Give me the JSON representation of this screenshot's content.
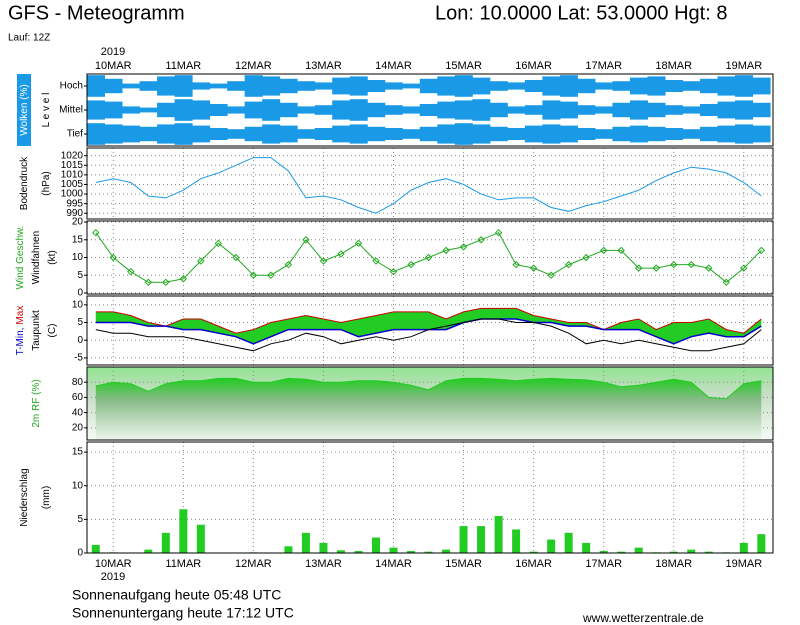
{
  "header": {
    "title": "GFS - Meteogramm",
    "location": "Lon: 10.0000 Lat: 53.0000 Hgt: 8",
    "run": "Lauf: 12Z"
  },
  "footer": {
    "sunrise": "Sonnenaufgang heute 05:48 UTC",
    "sunset": "Sonnenuntergang heute 17:12 UTC",
    "source": "www.wetterzentrale.de"
  },
  "time_axis": {
    "year": "2019",
    "xlim": [
      -9,
      226
    ],
    "xticks": [
      {
        "value": 0,
        "label": "10MAR"
      },
      {
        "value": 24,
        "label": "11MAR"
      },
      {
        "value": 48,
        "label": "12MAR"
      },
      {
        "value": 72,
        "label": "13MAR"
      },
      {
        "value": 96,
        "label": "14MAR"
      },
      {
        "value": 120,
        "label": "15MAR"
      },
      {
        "value": 144,
        "label": "16MAR"
      },
      {
        "value": 168,
        "label": "17MAR"
      },
      {
        "value": 192,
        "label": "18MAR"
      },
      {
        "value": 216,
        "label": "19MAR"
      }
    ],
    "x": [
      -6,
      0,
      6,
      12,
      18,
      24,
      30,
      36,
      42,
      48,
      54,
      60,
      66,
      72,
      78,
      84,
      90,
      96,
      102,
      108,
      114,
      120,
      126,
      132,
      138,
      144,
      150,
      156,
      162,
      168,
      174,
      180,
      186,
      192,
      198,
      204,
      210,
      216,
      222
    ]
  },
  "chart_data": [
    {
      "type": "cloud_levels",
      "ylabel": [
        [
          {
            "text": "Wolken (%)",
            "color": "#ffffff"
          }
        ],
        [
          {
            "text": "L e v e l",
            "color": "#000000"
          }
        ]
      ],
      "ylabel_bg": "#1a9ae6",
      "color": "#1a9ae6",
      "series": [
        {
          "name": "Hoch",
          "values": [
            90,
            60,
            20,
            40,
            80,
            90,
            30,
            20,
            40,
            90,
            80,
            60,
            40,
            30,
            70,
            80,
            50,
            30,
            20,
            60,
            80,
            90,
            70,
            40,
            30,
            50,
            80,
            90,
            60,
            30,
            40,
            70,
            80,
            50,
            40,
            60,
            80,
            90,
            70
          ]
        },
        {
          "name": "Mittel",
          "values": [
            80,
            70,
            30,
            20,
            60,
            90,
            80,
            50,
            30,
            70,
            90,
            60,
            30,
            40,
            80,
            90,
            60,
            40,
            30,
            50,
            70,
            80,
            90,
            60,
            30,
            40,
            80,
            70,
            40,
            30,
            60,
            80,
            60,
            40,
            30,
            50,
            70,
            80,
            60
          ]
        },
        {
          "name": "Tief",
          "values": [
            90,
            80,
            70,
            60,
            80,
            90,
            70,
            50,
            40,
            60,
            80,
            70,
            40,
            50,
            70,
            80,
            60,
            50,
            40,
            60,
            80,
            90,
            80,
            60,
            50,
            70,
            80,
            70,
            50,
            40,
            60,
            70,
            60,
            50,
            40,
            60,
            70,
            80,
            70
          ]
        }
      ]
    },
    {
      "type": "line",
      "ylabel": [
        [
          {
            "text": "Bodendruck",
            "color": "#000000"
          }
        ],
        [
          {
            "text": "(hPa)",
            "color": "#000000"
          }
        ]
      ],
      "color": "#1a9ae6",
      "values": [
        1006,
        1008,
        1006,
        999,
        998,
        1002,
        1008,
        1011,
        1015,
        1019,
        1019,
        1012,
        998,
        999,
        997,
        993,
        990,
        995,
        1002,
        1006,
        1008,
        1005,
        1000,
        997,
        998,
        998,
        993,
        991,
        994,
        996,
        999,
        1002,
        1007,
        1011,
        1014,
        1013,
        1011,
        1006,
        999
      ],
      "ylim": [
        987,
        1024
      ],
      "yticks": [
        990,
        995,
        1000,
        1005,
        1010,
        1015,
        1020
      ],
      "grid": true
    },
    {
      "type": "line_markers",
      "ylabel": [
        [
          {
            "text": "Wind Geschw.",
            "color": "#22aa22"
          }
        ],
        [
          {
            "text": "Windfahnen",
            "color": "#000000"
          }
        ],
        [
          {
            "text": "(kt)",
            "color": "#000000"
          }
        ]
      ],
      "color": "#22aa22",
      "values": [
        17,
        10,
        6,
        3,
        3,
        4,
        9,
        14,
        10,
        5,
        5,
        8,
        15,
        9,
        11,
        14,
        9,
        6,
        8,
        10,
        12,
        13,
        15,
        17,
        8,
        7,
        5,
        8,
        10,
        12,
        12,
        7,
        7,
        8,
        8,
        7,
        3,
        7,
        12
      ],
      "ylim": [
        -0.3,
        20.3
      ],
      "yticks": [
        0,
        5,
        10,
        15,
        20
      ],
      "grid": true
    },
    {
      "type": "temperature",
      "ylabel": [
        [
          {
            "text": "T-Min,",
            "color": "#0000cc"
          },
          {
            "text": "Max",
            "color": "#cc0000"
          }
        ],
        [
          {
            "text": "Taupunkt",
            "color": "#000000"
          }
        ],
        [
          {
            "text": "(C)",
            "color": "#000000"
          }
        ]
      ],
      "fill_color": "#22cc22",
      "tmin": {
        "color": "#0000cc",
        "values": [
          5,
          5,
          5,
          4,
          4,
          3,
          3,
          2,
          1,
          -1,
          1,
          3,
          3,
          3,
          3,
          1,
          2,
          3,
          3,
          3,
          3,
          5,
          6,
          6,
          6,
          5,
          5,
          4,
          4,
          3,
          3,
          3,
          1,
          -1,
          1,
          2,
          1,
          1,
          4
        ]
      },
      "tmax": {
        "color": "#cc0000",
        "values": [
          8,
          8,
          7,
          5,
          4,
          6,
          6,
          4,
          2,
          3,
          5,
          6,
          7,
          6,
          5,
          6,
          7,
          8,
          8,
          8,
          6,
          8,
          9,
          9,
          9,
          7,
          6,
          5,
          5,
          3,
          5,
          6,
          3,
          5,
          5,
          6,
          3,
          2,
          6
        ]
      },
      "dewpoint": {
        "color": "#000000",
        "values": [
          3,
          2,
          2,
          1,
          1,
          1,
          0,
          -1,
          -2,
          -3,
          -1,
          0,
          2,
          1,
          -1,
          0,
          1,
          0,
          1,
          3,
          4,
          5,
          6,
          6,
          5,
          5,
          4,
          2,
          -1,
          0,
          -1,
          0,
          -1,
          -2,
          -3,
          -3,
          -2,
          -1,
          3
        ]
      },
      "ylim": [
        -7,
        12.5
      ],
      "yticks": [
        -5,
        0,
        5,
        10
      ],
      "grid": true
    },
    {
      "type": "area",
      "ylabel": [
        [
          {
            "text": "2m RF (%)",
            "color": "#22aa22"
          }
        ]
      ],
      "color": "#22cc22",
      "values": [
        75,
        80,
        78,
        68,
        78,
        82,
        82,
        85,
        85,
        80,
        80,
        85,
        84,
        80,
        80,
        82,
        82,
        80,
        76,
        70,
        82,
        85,
        85,
        84,
        82,
        84,
        85,
        84,
        83,
        80,
        74,
        76,
        80,
        84,
        80,
        60,
        58,
        78,
        82
      ],
      "ylim": [
        4,
        100
      ],
      "yticks": [
        20,
        40,
        60,
        80
      ],
      "grid": true
    },
    {
      "type": "bar",
      "ylabel": [
        [
          {
            "text": "Niederschlag",
            "color": "#000000"
          }
        ],
        [
          {
            "text": "(mm)",
            "color": "#000000"
          }
        ]
      ],
      "color": "#22cc22",
      "values": [
        1.2,
        0.1,
        0,
        0.5,
        3,
        6.5,
        4.2,
        0,
        0,
        0.1,
        0,
        1,
        3,
        1.5,
        0.4,
        0.3,
        2.3,
        0.8,
        0.3,
        0.2,
        0.5,
        4,
        4,
        5.5,
        3.5,
        0.2,
        2,
        3,
        1.5,
        0.3,
        0.2,
        0.8,
        0.1,
        0.2,
        0.5,
        0.2,
        0.1,
        1.5,
        2.8
      ],
      "ylim": [
        0,
        16.5
      ],
      "yticks": [
        0,
        5,
        10,
        15
      ],
      "grid": true
    }
  ]
}
